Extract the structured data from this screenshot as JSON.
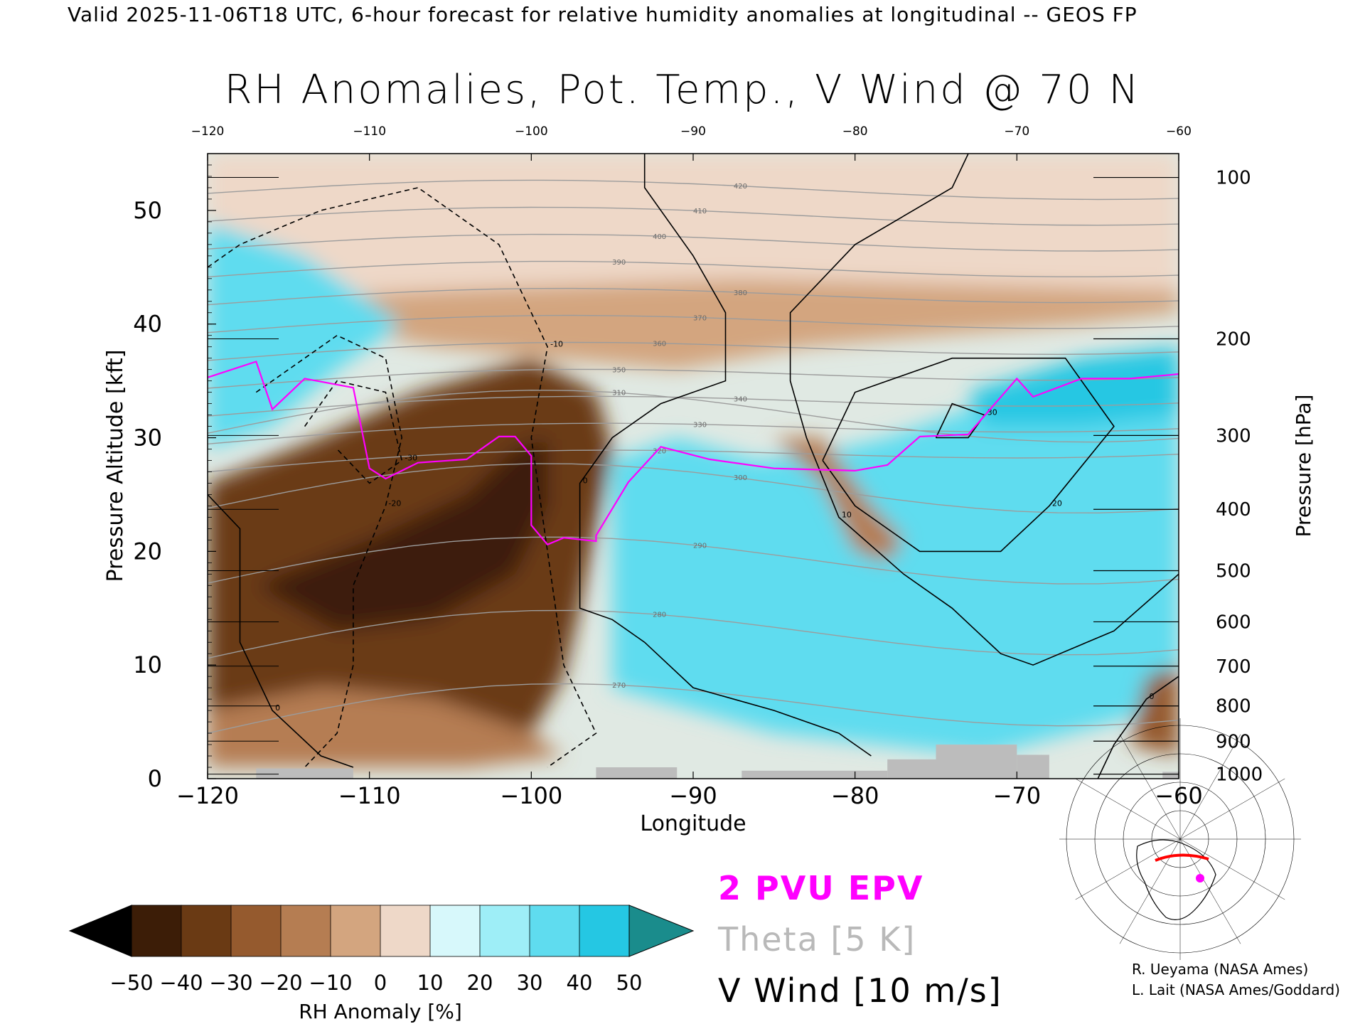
{
  "header": {
    "valid_line": "Valid 2025-11-06T18 UTC, 6-hour forecast for relative humidity anomalies at longitudinal -- GEOS FP"
  },
  "chart_data": {
    "type": "heatmap",
    "title": "RH Anomalies, Pot. Temp., V Wind @ 70 N",
    "xlabel": "Longitude",
    "ylabel_left": "Pressure Altitude [kft]",
    "ylabel_right": "Pressure [hPa]",
    "xlim": [
      -120,
      -60
    ],
    "ylim": [
      0,
      55
    ],
    "x_ticks": [
      -120,
      -110,
      -100,
      -90,
      -80,
      -70,
      -60
    ],
    "x_tick_labels": [
      "−120",
      "−110",
      "−100",
      "−90",
      "−80",
      "−70",
      "−60"
    ],
    "y_ticks": [
      0,
      10,
      20,
      30,
      40,
      50
    ],
    "y_tick_labels": [
      "0",
      "10",
      "20",
      "30",
      "40",
      "50"
    ],
    "pressure_ticks": [
      {
        "label": "100",
        "kft": 52.9
      },
      {
        "label": "200",
        "kft": 38.7
      },
      {
        "label": "300",
        "kft": 30.2
      },
      {
        "label": "400",
        "kft": 23.7
      },
      {
        "label": "500",
        "kft": 18.3
      },
      {
        "label": "600",
        "kft": 13.8
      },
      {
        "label": "700",
        "kft": 9.9
      },
      {
        "label": "800",
        "kft": 6.4
      },
      {
        "label": "900",
        "kft": 3.3
      },
      {
        "label": "1000",
        "kft": 0.4
      }
    ],
    "colorbar": {
      "label": "RH Anomaly [%]",
      "tick_labels": [
        "−50",
        "−40",
        "−30",
        "−20",
        "−10",
        "0",
        "10",
        "20",
        "30",
        "40",
        "50"
      ],
      "colors": [
        "#3c1d07",
        "#6a3a14",
        "#955a2e",
        "#b57d52",
        "#d3a57f",
        "#eed8c8",
        "#d7f8fb",
        "#9eeef7",
        "#5fdcef",
        "#25c7e3",
        "#0d93b3"
      ],
      "under_color": "#000000",
      "over_color": "#1a8c8c"
    },
    "rh_regions": [
      {
        "desc": "stratosphere near-neutral",
        "value": 0,
        "poly": [
          [
            -120,
            55
          ],
          [
            -60,
            55
          ],
          [
            -60,
            42
          ],
          [
            -120,
            42
          ]
        ]
      },
      {
        "desc": "upper dry band",
        "value": -15,
        "poly": [
          [
            -106,
            43
          ],
          [
            -87,
            44
          ],
          [
            -60,
            43
          ],
          [
            -60,
            41
          ],
          [
            -66,
            40
          ],
          [
            -75,
            39
          ],
          [
            -83,
            38
          ],
          [
            -91,
            36
          ],
          [
            -99,
            37
          ],
          [
            -106,
            38
          ],
          [
            -113,
            40
          ],
          [
            -120,
            40
          ],
          [
            -120,
            42
          ]
        ]
      },
      {
        "desc": "western moist upper",
        "value": 30,
        "poly": [
          [
            -120,
            49
          ],
          [
            -114,
            46
          ],
          [
            -108,
            40
          ],
          [
            -112,
            36
          ],
          [
            -116,
            31
          ],
          [
            -120,
            29
          ]
        ]
      },
      {
        "desc": "deep dry tongue",
        "value": -40,
        "poly": [
          [
            -120,
            26
          ],
          [
            -113,
            30
          ],
          [
            -107,
            34
          ],
          [
            -100,
            37
          ],
          [
            -96,
            34
          ],
          [
            -95,
            29
          ],
          [
            -96,
            22
          ],
          [
            -97,
            15
          ],
          [
            -98,
            9
          ],
          [
            -100,
            4
          ],
          [
            -106,
            7
          ],
          [
            -113,
            8
          ],
          [
            -120,
            6
          ]
        ]
      },
      {
        "desc": "dry core",
        "value": -50,
        "poly": [
          [
            -117,
            17
          ],
          [
            -110,
            21
          ],
          [
            -104,
            25
          ],
          [
            -101,
            29
          ],
          [
            -99,
            30
          ],
          [
            -99,
            24
          ],
          [
            -101,
            18
          ],
          [
            -106,
            14
          ],
          [
            -112,
            13
          ]
        ]
      },
      {
        "desc": "low-level moderate dry",
        "value": -20,
        "poly": [
          [
            -120,
            6
          ],
          [
            -113,
            8
          ],
          [
            -106,
            7
          ],
          [
            -100,
            4
          ],
          [
            -98,
            2
          ],
          [
            -104,
            1
          ],
          [
            -112,
            1
          ],
          [
            -120,
            1
          ]
        ]
      },
      {
        "desc": "eastern moist body",
        "value": 30,
        "poly": [
          [
            -95,
            28
          ],
          [
            -91,
            30
          ],
          [
            -86,
            28
          ],
          [
            -81,
            29
          ],
          [
            -78,
            30
          ],
          [
            -72,
            33
          ],
          [
            -66,
            35
          ],
          [
            -60,
            36
          ],
          [
            -60,
            7
          ],
          [
            -64,
            5
          ],
          [
            -72,
            2
          ],
          [
            -85,
            4
          ],
          [
            -95,
            8
          ]
        ]
      },
      {
        "desc": "eastern moist core",
        "value": 40,
        "poly": [
          [
            -73,
            34
          ],
          [
            -66,
            37
          ],
          [
            -60,
            38
          ],
          [
            -60,
            32
          ],
          [
            -66,
            31
          ],
          [
            -72,
            31
          ]
        ]
      },
      {
        "desc": "mid dry pocket",
        "value": -20,
        "poly": [
          [
            -85,
            30
          ],
          [
            -82,
            26
          ],
          [
            -80,
            20
          ],
          [
            -78,
            19
          ],
          [
            -77,
            21
          ],
          [
            -79,
            24
          ],
          [
            -82,
            30
          ]
        ]
      },
      {
        "desc": "low-level dry east",
        "value": -35,
        "poly": [
          [
            -62,
            9
          ],
          [
            -60,
            10
          ],
          [
            -60,
            2
          ],
          [
            -63,
            3
          ]
        ]
      }
    ],
    "series": [
      {
        "name": "2 PVU EPV",
        "color": "#ff00ff",
        "points": [
          [
            -120,
            35.3
          ],
          [
            -117,
            36.7
          ],
          [
            -116,
            32.5
          ],
          [
            -114,
            35.2
          ],
          [
            -111,
            34.4
          ],
          [
            -110,
            27.3
          ],
          [
            -109,
            26.4
          ],
          [
            -107,
            27.8
          ],
          [
            -104,
            28.1
          ],
          [
            -102,
            30.1
          ],
          [
            -101,
            30.1
          ],
          [
            -100,
            28.4
          ],
          [
            -100,
            22.3
          ],
          [
            -99,
            20.6
          ],
          [
            -98,
            21.2
          ],
          [
            -96,
            20.9
          ],
          [
            -96,
            21.4
          ],
          [
            -94,
            26.1
          ],
          [
            -92,
            29.2
          ],
          [
            -89,
            28.1
          ],
          [
            -85,
            27.3
          ],
          [
            -80,
            27.1
          ],
          [
            -78,
            27.6
          ],
          [
            -76,
            30.1
          ],
          [
            -73,
            30.3
          ],
          [
            -70,
            35.2
          ],
          [
            -69,
            33.6
          ],
          [
            -66,
            35.2
          ],
          [
            -63,
            35.2
          ],
          [
            -60,
            35.6
          ]
        ]
      },
      {
        "name": "Theta [5 K]",
        "color": "#9c9c9c",
        "levels": [
          270,
          280,
          290,
          300,
          310,
          320,
          330,
          340,
          350,
          360,
          370,
          380,
          390,
          400,
          410,
          420
        ],
        "labeled_values": [
          "270",
          "280",
          "290",
          "300",
          "310",
          "320",
          "330",
          "340",
          "350",
          "360",
          "370",
          "380",
          "390",
          "400",
          "410",
          "420"
        ]
      },
      {
        "name": "V Wind [10 m/s]",
        "color": "#000000",
        "contour_labels": [
          "0",
          "10",
          "20",
          "30",
          "-10",
          "-20",
          "-30"
        ]
      }
    ],
    "v_wind_lines": [
      {
        "value": 0,
        "style": "solid",
        "points": [
          [
            -93,
            55
          ],
          [
            -93,
            52
          ],
          [
            -90,
            46
          ],
          [
            -88,
            41
          ],
          [
            -88,
            35
          ],
          [
            -92,
            33
          ],
          [
            -95,
            30
          ],
          [
            -97,
            26
          ],
          [
            -97,
            15
          ],
          [
            -95,
            14
          ],
          [
            -93,
            12
          ],
          [
            -90,
            8
          ],
          [
            -85,
            6
          ],
          [
            -81,
            4
          ],
          [
            -79,
            2
          ]
        ]
      },
      {
        "value": 10,
        "style": "solid",
        "points": [
          [
            -73,
            55
          ],
          [
            -74,
            52
          ],
          [
            -80,
            47
          ],
          [
            -84,
            41
          ],
          [
            -84,
            35
          ],
          [
            -83,
            30
          ],
          [
            -81,
            23
          ],
          [
            -77,
            18
          ],
          [
            -74,
            15
          ],
          [
            -71,
            11
          ],
          [
            -69,
            10
          ],
          [
            -64,
            13
          ],
          [
            -60,
            18
          ]
        ]
      },
      {
        "value": 20,
        "style": "solid",
        "points": [
          [
            -82,
            28
          ],
          [
            -80,
            34
          ],
          [
            -74,
            37
          ],
          [
            -67,
            37
          ],
          [
            -64,
            31
          ],
          [
            -68,
            24
          ],
          [
            -71,
            20
          ],
          [
            -76,
            20
          ],
          [
            -80,
            24
          ],
          [
            -82,
            28
          ]
        ]
      },
      {
        "value": 30,
        "style": "solid",
        "points": [
          [
            -75,
            30
          ],
          [
            -74,
            33
          ],
          [
            -72,
            32
          ],
          [
            -73,
            30
          ],
          [
            -75,
            30
          ]
        ]
      },
      {
        "value": -10,
        "style": "dashed",
        "points": [
          [
            -120,
            45
          ],
          [
            -118,
            47
          ],
          [
            -113,
            50
          ],
          [
            -107,
            52
          ],
          [
            -102,
            47
          ],
          [
            -99,
            38
          ],
          [
            -100,
            30
          ],
          [
            -99,
            20
          ],
          [
            -98,
            10
          ],
          [
            -96,
            4
          ],
          [
            -99,
            1
          ]
        ]
      },
      {
        "value": -20,
        "style": "dashed",
        "points": [
          [
            -117,
            34
          ],
          [
            -112,
            39
          ],
          [
            -109,
            37
          ],
          [
            -108,
            30
          ],
          [
            -109,
            24
          ],
          [
            -111,
            17
          ],
          [
            -111,
            10
          ],
          [
            -112,
            4
          ],
          [
            -114,
            1
          ]
        ]
      },
      {
        "value": -30,
        "style": "dashed",
        "points": [
          [
            -114,
            31
          ],
          [
            -112,
            35
          ],
          [
            -109,
            34
          ],
          [
            -108,
            28
          ],
          [
            -110,
            26
          ],
          [
            -112,
            29
          ]
        ]
      },
      {
        "value": 0,
        "style": "solid",
        "points": [
          [
            -120,
            25
          ],
          [
            -118,
            22
          ],
          [
            -118,
            12
          ],
          [
            -116,
            6
          ],
          [
            -113,
            2
          ],
          [
            -111,
            1
          ]
        ]
      },
      {
        "value": 0,
        "style": "solid",
        "points": [
          [
            -65,
            0
          ],
          [
            -64,
            3
          ],
          [
            -62,
            7
          ],
          [
            -60,
            9
          ]
        ]
      }
    ],
    "terrain": [
      {
        "x": [
          -117,
          -111
        ],
        "top_kft": 0.9
      },
      {
        "x": [
          -96,
          -91
        ],
        "top_kft": 1.0
      },
      {
        "x": [
          -87,
          -78
        ],
        "top_kft": 0.7
      },
      {
        "x": [
          -78,
          -75
        ],
        "top_kft": 1.7
      },
      {
        "x": [
          -75,
          -70
        ],
        "top_kft": 3.0
      },
      {
        "x": [
          -70,
          -68
        ],
        "top_kft": 2.1
      },
      {
        "x": [
          -61,
          -60
        ],
        "top_kft": 0.6
      }
    ],
    "legend": [
      {
        "label": "2 PVU EPV",
        "color": "#ff00ff"
      },
      {
        "label": "Theta [5 K]",
        "color": "#b9b9b9"
      },
      {
        "label": "V Wind [10 m/s]",
        "color": "#000000"
      }
    ],
    "grid": false
  },
  "credits": {
    "line1": "R. Ueyama (NASA Ames)",
    "line2": "L. Lait (NASA Ames/Goddard)"
  },
  "inset_map": {
    "marker_color": "#ff00ff",
    "track_color": "#ff0000"
  }
}
